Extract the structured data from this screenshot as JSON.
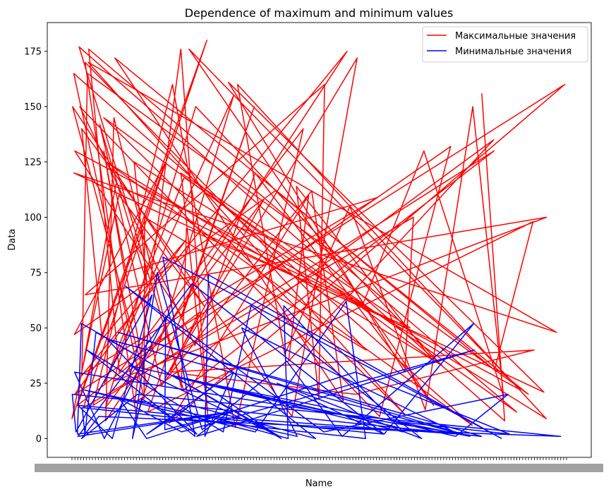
{
  "chart_data": {
    "type": "line",
    "title": "Dependence of maximum and minimum values",
    "xlabel": "Name",
    "ylabel": "Data",
    "ylim": [
      -8.5,
      188
    ],
    "yticks": [
      0,
      25,
      50,
      75,
      100,
      125,
      150,
      175
    ],
    "ytick_labels": [
      "0",
      "25",
      "50",
      "75",
      "100",
      "125",
      "150",
      "175"
    ],
    "x_tick_labels_note": "many overlapping categorical labels (unreadable)",
    "legend": "top-right",
    "grid": false,
    "series": [
      {
        "name": "Максимальные значения",
        "color": "#ff0000",
        "values": [
          156,
          8,
          177,
          22,
          130,
          15,
          160,
          5,
          140,
          30,
          176,
          12,
          118,
          25,
          155,
          9,
          170,
          40,
          100,
          18,
          165,
          6,
          125,
          33,
          150,
          14,
          108,
          27,
          172,
          10,
          140,
          45,
          90,
          20,
          160,
          7,
          110,
          35,
          135,
          16,
          176,
          11,
          120,
          50,
          95,
          23,
          145,
          8,
          175,
          28,
          115,
          60,
          130,
          19,
          150,
          13,
          105,
          38,
          160,
          9,
          125,
          70,
          142,
          24,
          112,
          17,
          172,
          31,
          98,
          12,
          150,
          55,
          130,
          22,
          176,
          15,
          120,
          42,
          150,
          10,
          132,
          26,
          100,
          65,
          160,
          18,
          114,
          36,
          145,
          11,
          170,
          48,
          120,
          21,
          161,
          30,
          100,
          14,
          180,
          9,
          110,
          60,
          150,
          25,
          130,
          75,
          109,
          29,
          165,
          20,
          112,
          47,
          125,
          15,
          57,
          30,
          40,
          20,
          29
        ]
      },
      {
        "name": "Минимальные значения",
        "color": "#0000ff",
        "values": [
          0,
          82,
          1,
          40,
          3,
          60,
          0,
          25,
          2,
          70,
          1,
          12,
          4,
          55,
          0,
          30,
          2,
          48,
          1,
          20,
          3,
          65,
          0,
          15,
          2,
          52,
          1,
          35,
          4,
          75,
          0,
          18,
          2,
          45,
          1,
          28,
          3,
          60,
          0,
          10,
          2,
          50,
          1,
          22,
          3,
          62,
          0,
          14,
          2,
          48,
          1,
          33,
          3,
          25,
          0,
          52,
          2,
          12,
          1,
          40,
          3,
          18,
          0,
          30,
          2,
          8,
          1,
          20,
          3,
          69,
          0,
          15,
          2,
          30,
          1,
          74,
          2,
          10,
          0,
          20,
          1,
          5
        ]
      }
    ]
  }
}
